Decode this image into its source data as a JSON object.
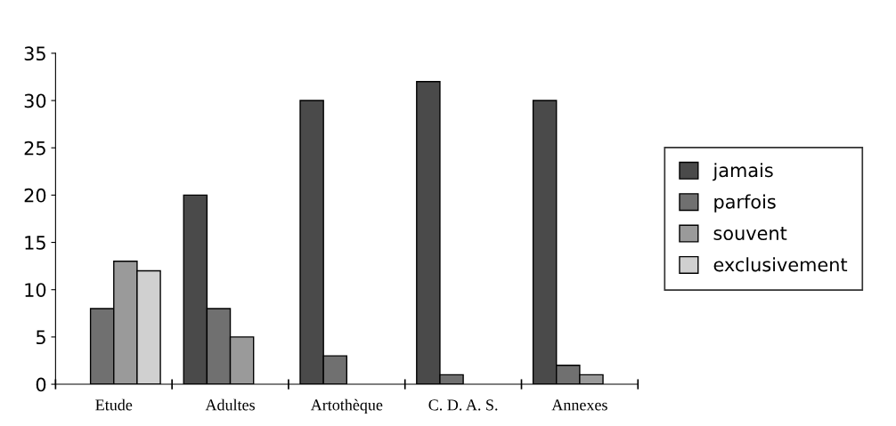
{
  "chart_data": {
    "type": "bar",
    "categories": [
      "Etude",
      "Adultes",
      "Artothèque",
      "C. D. A. S.",
      "Annexes"
    ],
    "series": [
      {
        "name": "jamais",
        "color": "#4a4a4a",
        "values": [
          null,
          20,
          30,
          32,
          30
        ]
      },
      {
        "name": "parfois",
        "color": "#707070",
        "values": [
          8,
          8,
          3,
          1,
          2
        ]
      },
      {
        "name": "souvent",
        "color": "#9a9a9a",
        "values": [
          13,
          5,
          null,
          null,
          1
        ]
      },
      {
        "name": "exclusivement",
        "color": "#d0d0d0",
        "values": [
          12,
          null,
          null,
          null,
          null
        ]
      }
    ],
    "ylim": [
      0,
      35
    ],
    "yticks": [
      0,
      5,
      10,
      15,
      20,
      25,
      30,
      35
    ],
    "grid": false,
    "legend": "right"
  }
}
